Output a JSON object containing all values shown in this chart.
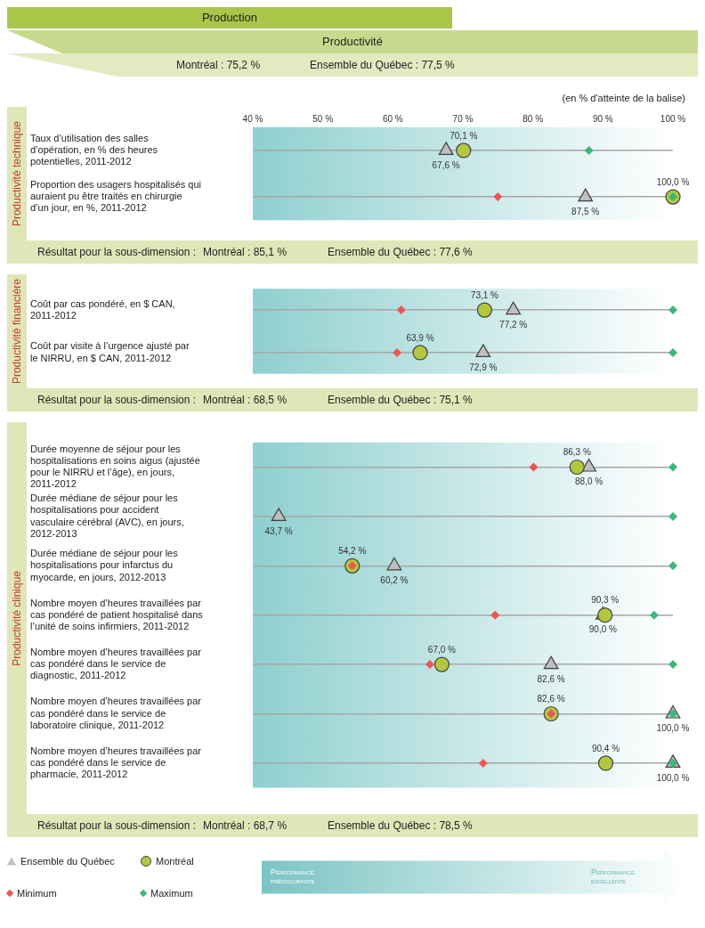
{
  "chart_data": [
    {
      "type": "scatter",
      "orientation": "horizontal",
      "title": "Production",
      "subtitle": "Productivité",
      "ylabel": "Productivité technique",
      "categories": [
        "Taux d’utilisation des salles d’opération, en % des heures potentielles, 2011-2012",
        "Proportion des usagers hospitalisés qui auraient pu être traités en chirurgie d’un jour, en %, 2011-2012"
      ],
      "xlim": [
        40,
        100
      ],
      "xticks": [
        {
          "value": 40,
          "label": "40 %"
        },
        {
          "value": 50,
          "label": "50 %"
        },
        {
          "value": 60,
          "label": "60 %"
        },
        {
          "value": 70,
          "label": "70 %"
        },
        {
          "value": 80,
          "label": "80 %"
        },
        {
          "value": 90,
          "label": "90 %"
        },
        {
          "value": 100,
          "label": "100 %"
        }
      ],
      "grid": "y",
      "series": [
        {
          "color": "#bfbfbf",
          "marker": "triangle",
          "values": [
            67.6,
            87.5
          ],
          "value_labels": [
            "67,6 %",
            "87,5 %"
          ]
        },
        {
          "color": "#b3c740",
          "marker": "circle",
          "values": [
            70.1,
            100.0
          ],
          "value_labels": [
            "70,1 %",
            "100,0 %"
          ]
        },
        {
          "color": "#ef5555",
          "marker": "diamond",
          "values": [
            null,
            75
          ]
        },
        {
          "color": "#3cb878",
          "marker": "diamond",
          "values": [
            88,
            100
          ]
        }
      ],
      "annotations": [
        "Montréal : 75,2 %",
        "Ensemble du Québec : 77,5 %",
        "(en % d'atteinte de la balise)",
        "Résultat pour la sous-dimension :",
        "Montréal : 85,1 %",
        "Ensemble du Québec : 77,6 %"
      ]
    },
    {
      "type": "scatter",
      "orientation": "horizontal",
      "ylabel": "Productivité financière",
      "categories": [
        "Coût par cas pondéré, en $ CAN, 2011-2012",
        "Coût par visite à l’urgence ajusté par le NIRRU, en $ CAN, 2011-2012"
      ],
      "xlim": [
        40,
        100
      ],
      "tick_labels": "y",
      "grid": "y",
      "series": [
        {
          "color": "#bfbfbf",
          "marker": "triangle",
          "values": [
            77.2,
            72.9
          ],
          "value_labels": [
            "77,2 %",
            "72,9 %"
          ]
        },
        {
          "color": "#b3c740",
          "marker": "circle",
          "values": [
            73.1,
            63.9
          ],
          "value_labels": [
            "73,1 %",
            "63,9 %"
          ]
        },
        {
          "color": "#ef5555",
          "marker": "diamond",
          "values": [
            61.2,
            60.6
          ]
        },
        {
          "color": "#3cb878",
          "marker": "diamond",
          "values": [
            100,
            100
          ]
        }
      ],
      "annotations": [
        "Résultat pour la sous-dimension :",
        "Montréal : 68,5 %",
        "Ensemble du Québec : 75,1 %"
      ]
    },
    {
      "type": "scatter",
      "orientation": "horizontal",
      "ylabel": "Productivité clinique",
      "categories": [
        "Durée moyenne de séjour pour les hospitalisations en soins aigus (ajustée pour le NIRRU et l’âge), en jours, 2011-2012",
        "Durée médiane de séjour pour les hospitalisations pour accident vasculaire cérébral (AVC), en jours, 2012-2013",
        "Durée médiane de séjour pour les hospitalisations pour infarctus du myocarde, en jours, 2012-2013",
        "Nombre moyen d’heures travaillées par cas pondéré de patient hospitalisé dans l’unité de soins infirmiers, 2011-2012",
        "Nombre moyen d’heures travaillées par cas pondéré dans le service de diagnostic, 2011-2012",
        "Nombre moyen d’heures travaillées par cas pondéré dans le service de laboratoire clinique, 2011-2012",
        "Nombre moyen d’heures travaillées par cas pondéré dans le service de pharmacie, 2011-2012"
      ],
      "xlim": [
        40,
        100
      ],
      "tick_labels": "y",
      "grid": "y",
      "legend": "bottom",
      "series": [
        {
          "name": "Ensemble du Québec",
          "color": "#bfbfbf",
          "marker": "triangle",
          "values": [
            88.0,
            43.7,
            60.2,
            90.0,
            82.6,
            100.0,
            100.0
          ],
          "value_labels": [
            "88,0 %",
            "43,7 %",
            "60,2 %",
            "90,0 %",
            "82,6 %",
            "100,0 %",
            "100,0 %"
          ]
        },
        {
          "name": "Montréal",
          "color": "#b3c740",
          "marker": "circle",
          "values": [
            86.3,
            null,
            54.2,
            90.3,
            67.0,
            82.6,
            90.4
          ],
          "value_labels": [
            "86,3 %",
            null,
            "54,2 %",
            "90,3 %",
            "67,0 %",
            "82,6 %",
            "90,4 %"
          ]
        },
        {
          "name": "Minimum",
          "color": "#ef5555",
          "marker": "diamond",
          "values": [
            80.1,
            null,
            54.2,
            74.6,
            65.3,
            82.6,
            72.9
          ]
        },
        {
          "name": "Maximum",
          "color": "#3cb878",
          "marker": "diamond",
          "values": [
            100,
            100,
            100,
            97.3,
            100,
            100,
            100
          ]
        }
      ],
      "annotations": [
        "Résultat pour la sous-dimension :",
        "Montréal : 68,7 %",
        "Ensemble du Québec : 78,5 %",
        "Performance préoccupante",
        "Performance excellente"
      ]
    }
  ]
}
